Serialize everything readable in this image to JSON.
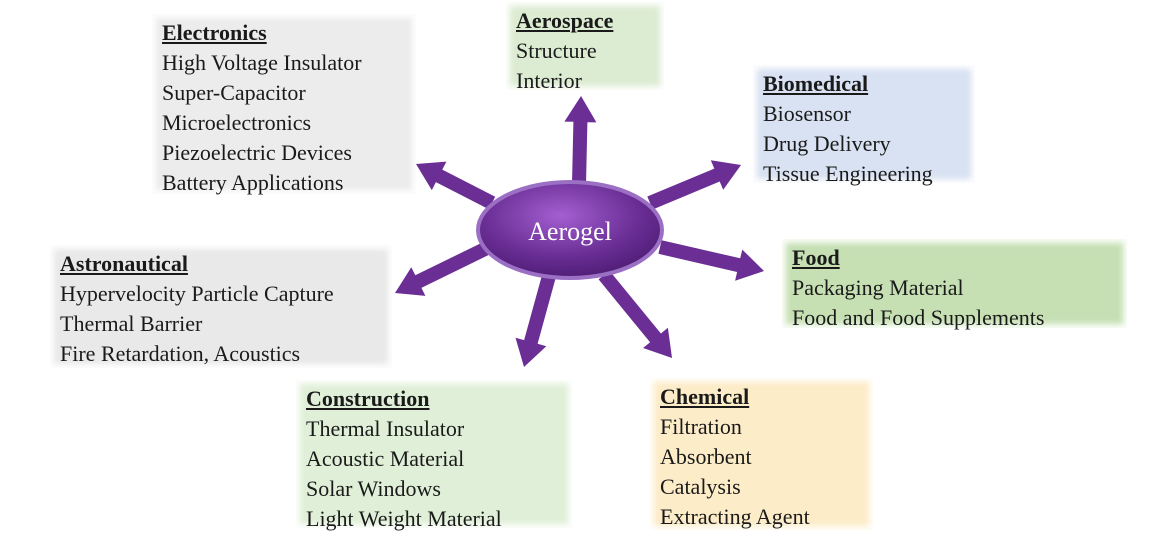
{
  "center": {
    "label": "Aerogel"
  },
  "colors": {
    "hub": "#6a2e95",
    "arrow": "#6a2e95",
    "electronics": "#ececec",
    "aerospace": "#dcecd2",
    "biomedical": "#d8e2f2",
    "food": "#c6e0b4",
    "astronautical": "#e9e9e9",
    "construction": "#e0efd8",
    "chemical": "#fdecc8"
  },
  "categories": {
    "electronics": {
      "title": "Electronics",
      "items": [
        "High Voltage Insulator",
        "Super-Capacitor",
        "Microelectronics",
        "Piezoelectric Devices",
        "Battery Applications"
      ]
    },
    "aerospace": {
      "title": "Aerospace",
      "items": [
        "Structure",
        "Interior"
      ]
    },
    "biomedical": {
      "title": "Biomedical",
      "items": [
        "Biosensor",
        "Drug Delivery",
        "Tissue Engineering"
      ]
    },
    "food": {
      "title": "Food",
      "items": [
        "Packaging Material",
        "Food and Food Supplements"
      ]
    },
    "astronautical": {
      "title": "Astronautical",
      "items": [
        "Hypervelocity Particle Capture",
        "Thermal Barrier",
        "Fire Retardation, Acoustics"
      ]
    },
    "construction": {
      "title": "Construction",
      "items": [
        "Thermal Insulator",
        "Acoustic Material",
        "Solar Windows",
        "Light Weight Material"
      ]
    },
    "chemical": {
      "title": "Chemical",
      "items": [
        "Filtration",
        "Absorbent",
        "Catalysis",
        "Extracting Agent"
      ]
    }
  }
}
